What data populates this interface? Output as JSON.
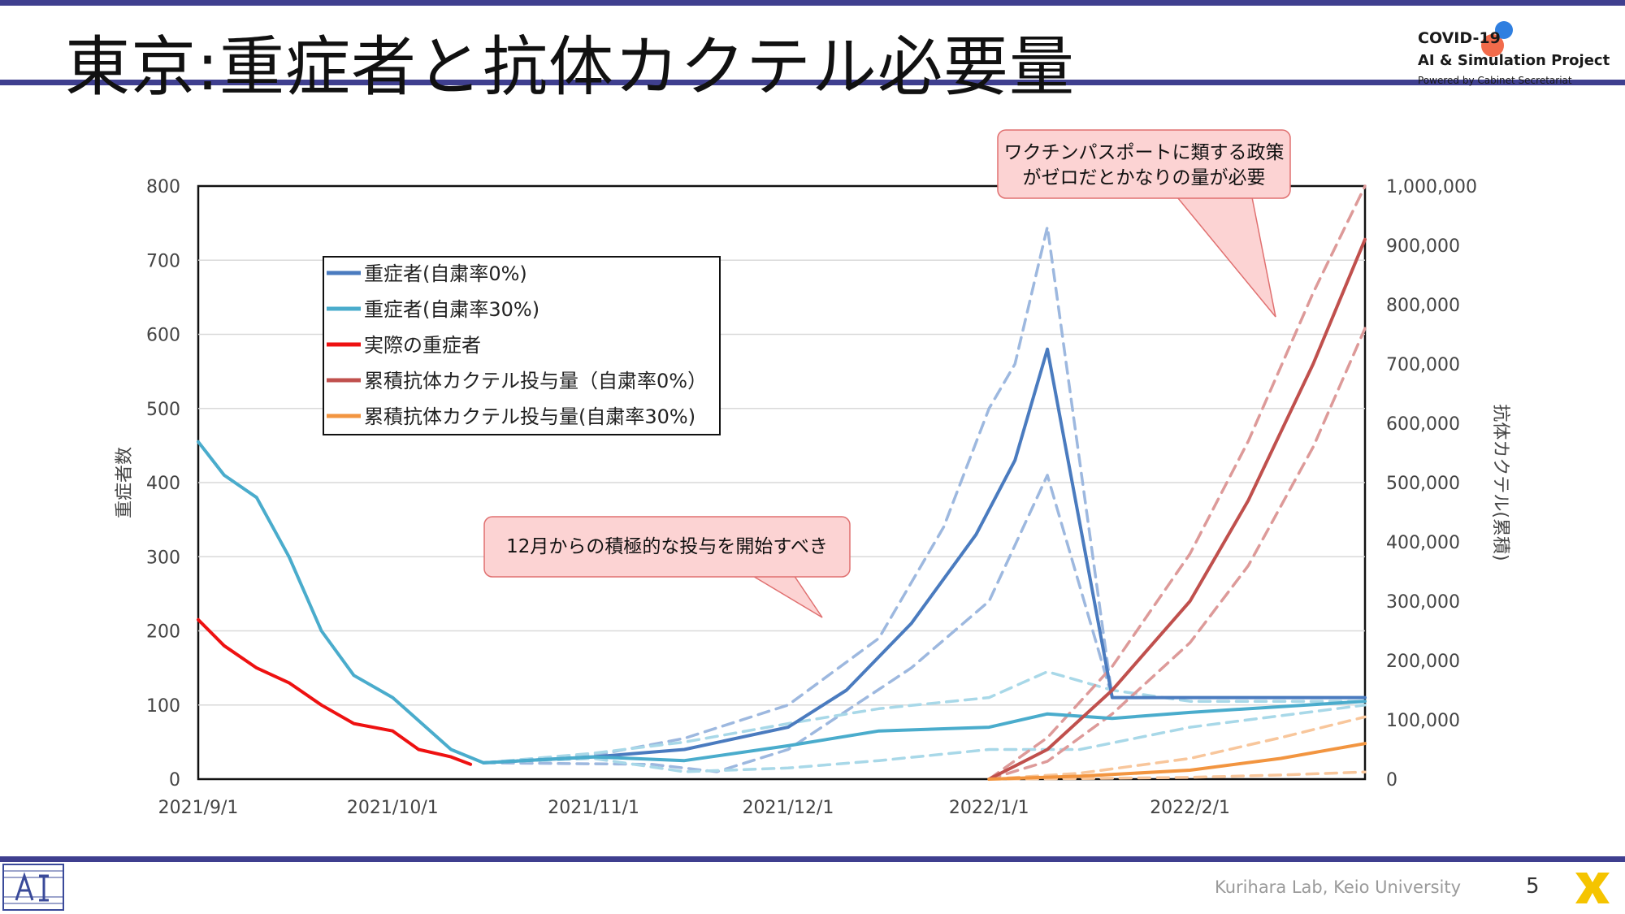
{
  "slide": {
    "title": "東京:重症者と抗体カクテル必要量",
    "logo": {
      "line1": "COVID-19",
      "line2": "AI & Simulation Project",
      "line3": "Powered by Cabinet Secretariat"
    },
    "footer_lab": "Kurihara Lab, Keio University",
    "page_number": "5",
    "colors": {
      "band": "#3f3f8f",
      "callout_fill": "#fcd3d3",
      "callout_border": "#e06666"
    }
  },
  "chart_data": {
    "type": "line",
    "ylabel_left": "重症者数",
    "ylabel_right": "抗体カクテル(累積)",
    "x_ticks": [
      "2021/9/1",
      "2021/10/1",
      "2021/11/1",
      "2021/12/1",
      "2022/1/1",
      "2022/2/1"
    ],
    "xlim": [
      "2021/9/1",
      "2022/2/28"
    ],
    "ylim_left": [
      0,
      800
    ],
    "ylim_right": [
      0,
      1000000
    ],
    "y_ticks_left": [
      "0",
      "100",
      "200",
      "300",
      "400",
      "500",
      "600",
      "700",
      "800"
    ],
    "y_ticks_right": [
      "0",
      "100,000",
      "200,000",
      "300,000",
      "400,000",
      "500,000",
      "600,000",
      "700,000",
      "800,000",
      "900,000",
      "1,000,000"
    ],
    "grid": "horizontal",
    "legend_position": "top-left",
    "legend": [
      {
        "label": "重症者(自粛率0%)",
        "color": "#4a7bbf"
      },
      {
        "label": "重症者(自粛率30%)",
        "color": "#4aaccc"
      },
      {
        "label": "実際の重症者",
        "color": "#ee1111"
      },
      {
        "label": "累積抗体カクテル投与量（自粛率0%）",
        "color": "#c0504d"
      },
      {
        "label": "累積抗体カクテル投与量(自粛率30%)",
        "color": "#f29540"
      }
    ],
    "annotations": [
      {
        "text_lines": [
          "ワクチンパスポートに類する政策",
          "がゼロだとかなりの量が必要"
        ]
      },
      {
        "text_lines": [
          "12月からの積極的な投与を開始すべき"
        ]
      }
    ],
    "series": [
      {
        "name": "重症者(自粛率0%)",
        "axis": "left",
        "color": "#4a7bbf",
        "x": [
          "2021/10/15",
          "2021/11/1",
          "2021/11/15",
          "2021/12/1",
          "2021/12/10",
          "2021/12/20",
          "2021/12/30",
          "2022/1/5",
          "2022/1/10",
          "2022/1/20",
          "2022/1/22",
          "2022/2/28"
        ],
        "y": [
          22,
          30,
          40,
          70,
          120,
          210,
          330,
          430,
          580,
          110,
          110,
          110
        ]
      },
      {
        "name": "重症者(自粛率0%) 上限",
        "axis": "left",
        "color": "#9db8df",
        "dashed": true,
        "x": [
          "2021/10/15",
          "2021/11/1",
          "2021/11/15",
          "2021/12/1",
          "2021/12/15",
          "2021/12/25",
          "2022/1/1",
          "2022/1/5",
          "2022/1/10",
          "2022/1/20",
          "2022/1/22"
        ],
        "y": [
          22,
          32,
          55,
          100,
          190,
          340,
          500,
          560,
          745,
          110,
          110
        ]
      },
      {
        "name": "重症者(自粛率0%) 下限",
        "axis": "left",
        "color": "#9db8df",
        "dashed": true,
        "x": [
          "2021/10/15",
          "2021/11/10",
          "2021/11/20",
          "2021/12/1",
          "2021/12/20",
          "2022/1/1",
          "2022/1/10",
          "2022/1/20",
          "2022/1/22"
        ],
        "y": [
          22,
          20,
          10,
          40,
          150,
          240,
          410,
          110,
          110
        ]
      },
      {
        "name": "重症者(自粛率30%)",
        "axis": "left",
        "color": "#4aaccc",
        "x": [
          "2021/9/1",
          "2021/9/5",
          "2021/9/10",
          "2021/9/15",
          "2021/9/20",
          "2021/9/25",
          "2021/10/1",
          "2021/10/10",
          "2021/10/15",
          "2021/11/1",
          "2021/11/15",
          "2021/12/1",
          "2021/12/15",
          "2022/1/1",
          "2022/1/10",
          "2022/1/20",
          "2022/2/1",
          "2022/2/28"
        ],
        "y": [
          455,
          410,
          380,
          300,
          200,
          140,
          110,
          40,
          22,
          30,
          25,
          45,
          65,
          70,
          88,
          82,
          90,
          105
        ]
      },
      {
        "name": "重症者(自粛率30%) 上限",
        "axis": "left",
        "color": "#a8d8e8",
        "dashed": true,
        "x": [
          "2021/10/15",
          "2021/11/1",
          "2021/11/15",
          "2021/12/1",
          "2021/12/15",
          "2022/1/1",
          "2022/1/10",
          "2022/1/20",
          "2022/2/1",
          "2022/2/28"
        ],
        "y": [
          22,
          35,
          50,
          75,
          95,
          110,
          145,
          120,
          105,
          105
        ]
      },
      {
        "name": "重症者(自粛率30%) 下限",
        "axis": "left",
        "color": "#a8d8e8",
        "dashed": true,
        "x": [
          "2021/10/15",
          "2021/11/1",
          "2021/11/15",
          "2021/12/1",
          "2021/12/15",
          "2022/1/1",
          "2022/1/15",
          "2022/2/1",
          "2022/2/28"
        ],
        "y": [
          22,
          28,
          10,
          15,
          25,
          40,
          40,
          70,
          100
        ]
      },
      {
        "name": "実際の重症者",
        "axis": "left",
        "color": "#ee1111",
        "x": [
          "2021/9/1",
          "2021/9/5",
          "2021/9/10",
          "2021/9/15",
          "2021/9/20",
          "2021/9/25",
          "2021/10/1",
          "2021/10/5",
          "2021/10/10",
          "2021/10/13"
        ],
        "y": [
          215,
          180,
          150,
          130,
          100,
          75,
          65,
          40,
          30,
          20
        ]
      },
      {
        "name": "累積抗体カクテル投与量（自粛率0%）",
        "axis": "right",
        "color": "#c0504d",
        "x": [
          "2022/1/1",
          "2022/1/10",
          "2022/1/20",
          "2022/2/1",
          "2022/2/10",
          "2022/2/20",
          "2022/2/28"
        ],
        "y": [
          0,
          50000,
          150000,
          300000,
          470000,
          700000,
          910000
        ]
      },
      {
        "name": "累積抗体カクテル投与量（自粛率0%） 上限",
        "axis": "right",
        "color": "#dd9a99",
        "dashed": true,
        "x": [
          "2022/1/1",
          "2022/1/10",
          "2022/1/20",
          "2022/2/1",
          "2022/2/10",
          "2022/2/20",
          "2022/2/28"
        ],
        "y": [
          0,
          70000,
          190000,
          380000,
          570000,
          820000,
          1000000
        ]
      },
      {
        "name": "累積抗体カクテル投与量（自粛率0%） 下限",
        "axis": "right",
        "color": "#dd9a99",
        "dashed": true,
        "x": [
          "2022/1/1",
          "2022/1/10",
          "2022/1/20",
          "2022/2/1",
          "2022/2/10",
          "2022/2/20",
          "2022/2/28"
        ],
        "y": [
          0,
          30000,
          110000,
          230000,
          360000,
          560000,
          760000
        ]
      },
      {
        "name": "累積抗体カクテル投与量(自粛率30%)",
        "axis": "right",
        "color": "#f29540",
        "x": [
          "2022/1/1",
          "2022/1/15",
          "2022/2/1",
          "2022/2/15",
          "2022/2/28"
        ],
        "y": [
          0,
          5000,
          15000,
          35000,
          60000
        ]
      },
      {
        "name": "累積抗体カクテル投与量(自粛率30%) 上限",
        "axis": "right",
        "color": "#f8c69b",
        "dashed": true,
        "x": [
          "2022/1/1",
          "2022/1/15",
          "2022/2/1",
          "2022/2/15",
          "2022/2/28"
        ],
        "y": [
          0,
          10000,
          35000,
          70000,
          105000
        ]
      },
      {
        "name": "累積抗体カクテル投与量(自粛率30%) 下限",
        "axis": "right",
        "color": "#f8c69b",
        "dashed": true,
        "x": [
          "2022/1/1",
          "2022/1/15",
          "2022/2/1",
          "2022/2/15",
          "2022/2/28"
        ],
        "y": [
          0,
          1000,
          3000,
          7000,
          12000
        ]
      }
    ]
  }
}
